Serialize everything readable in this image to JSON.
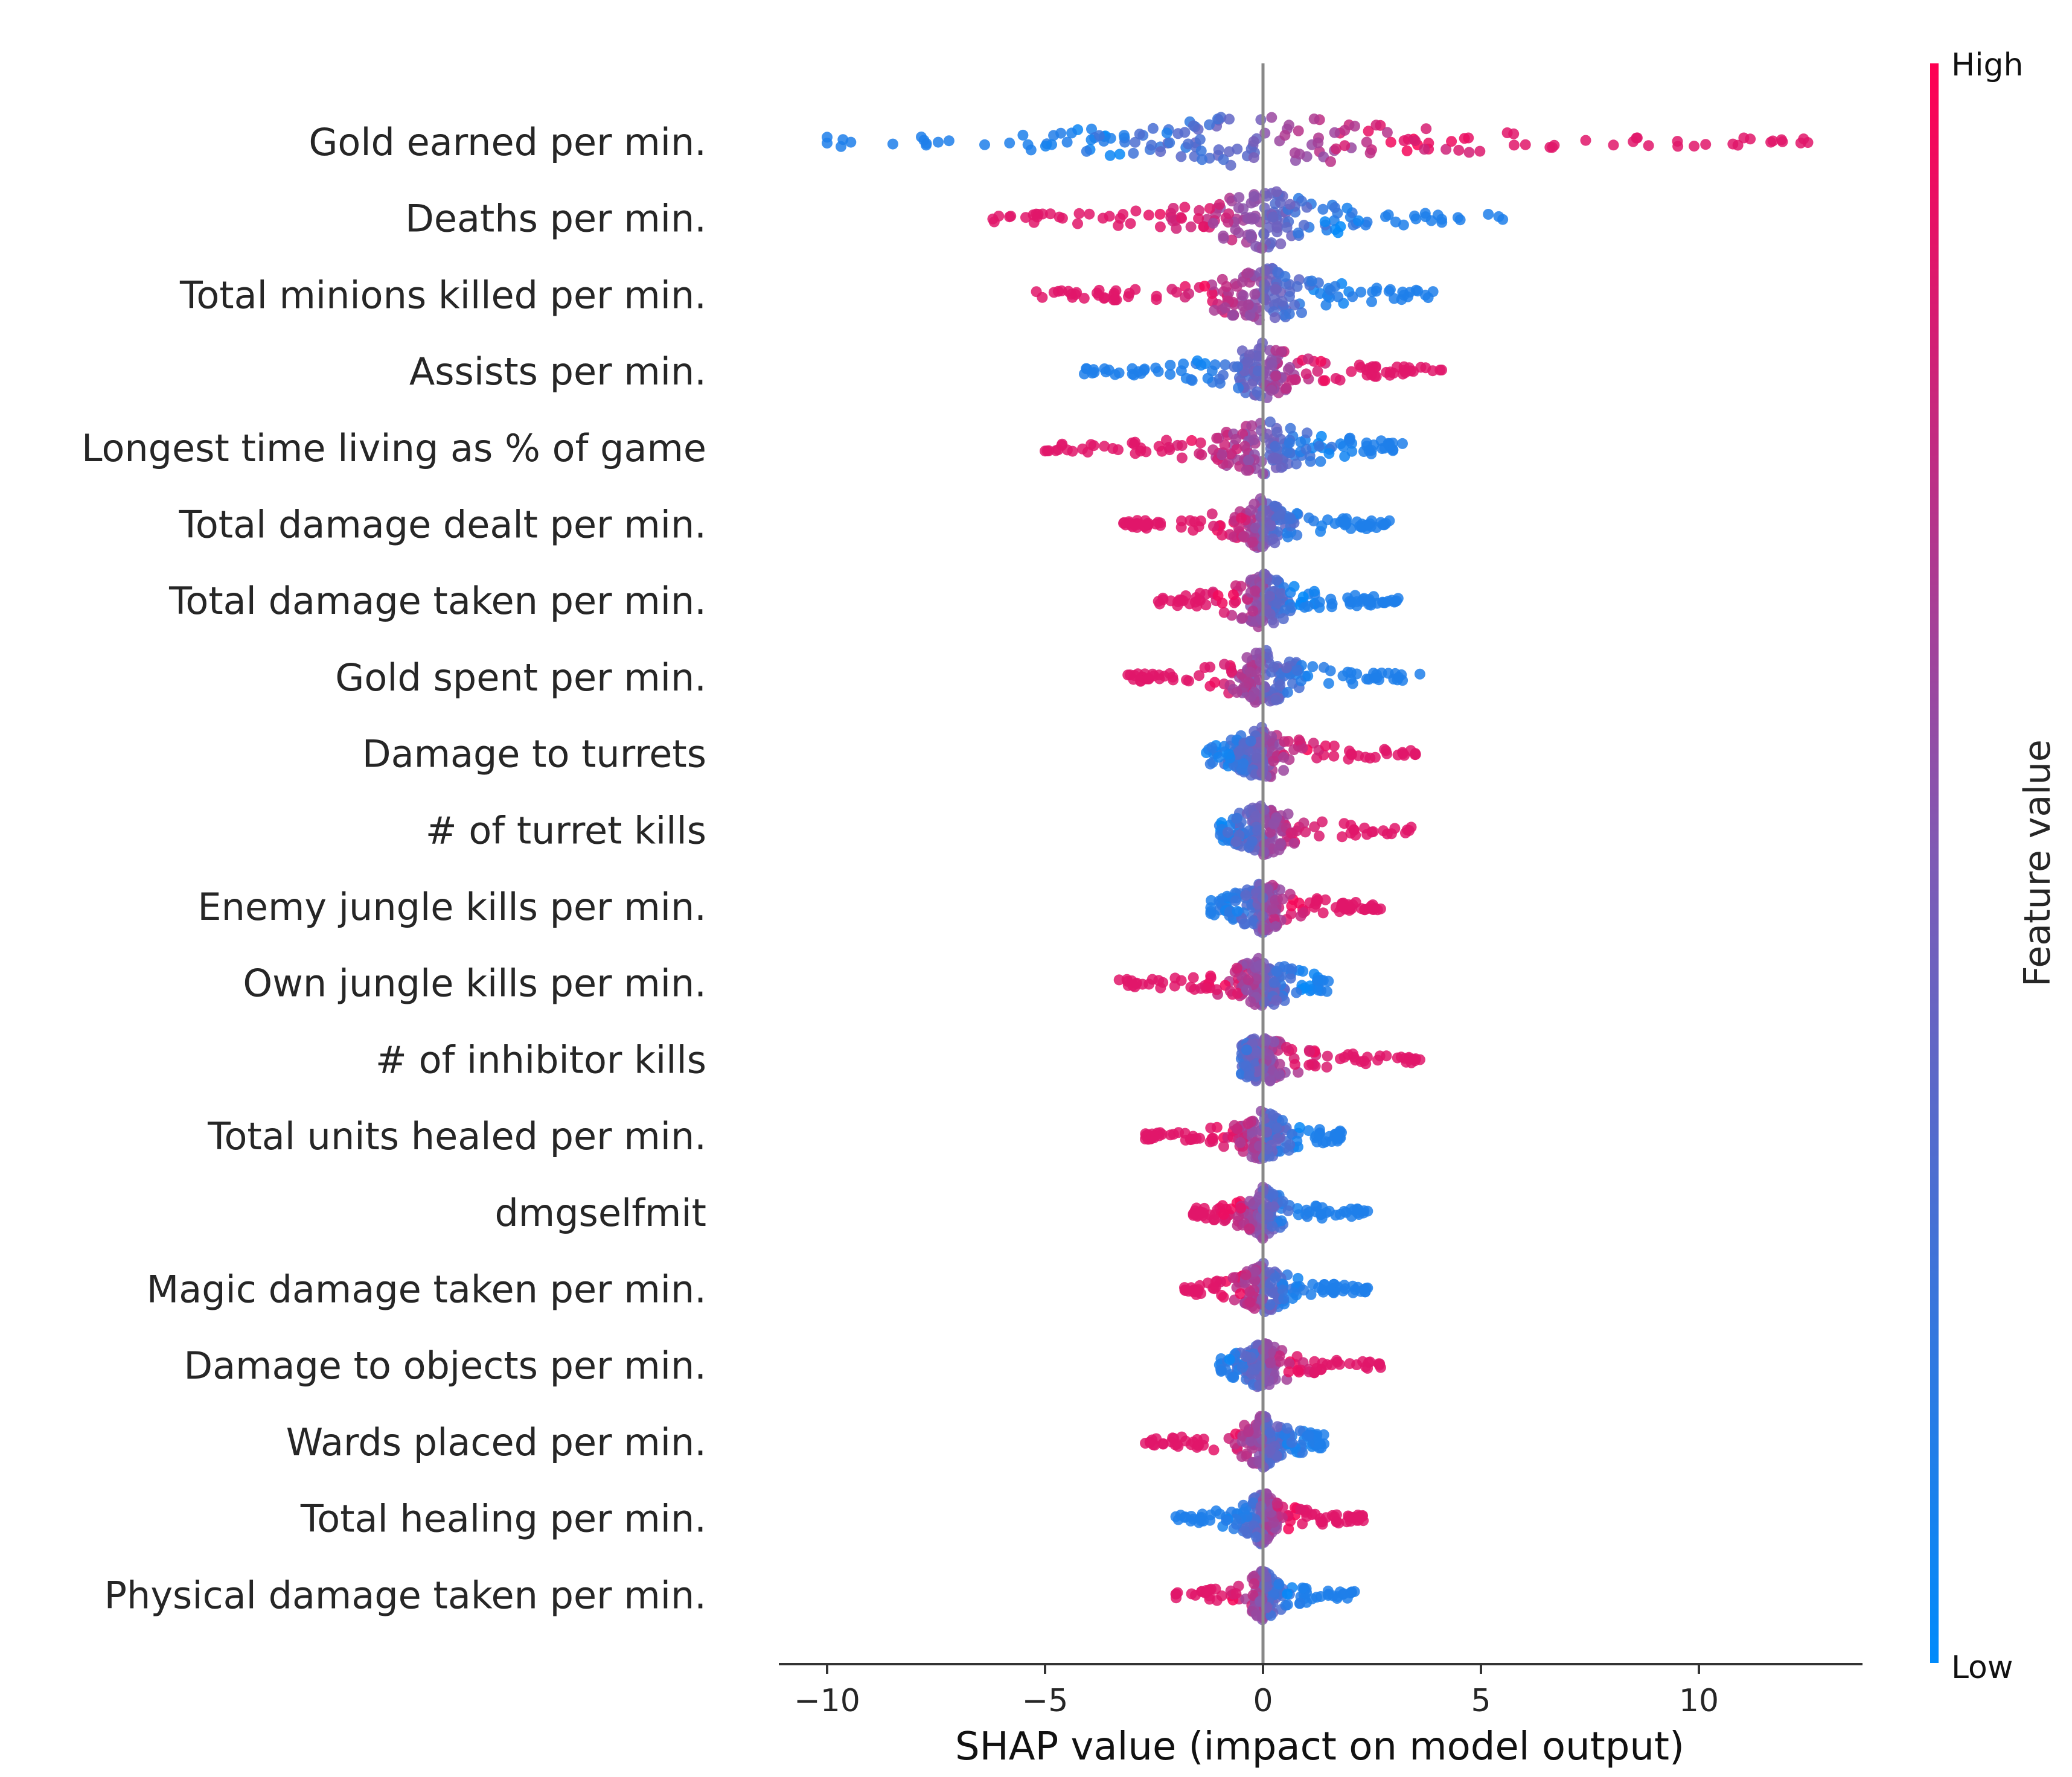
{
  "chart_data": {
    "type": "scatter",
    "subtype": "shap-beeswarm",
    "xlabel": "SHAP value (impact on model output)",
    "xlim": [
      -11.2,
      13.8
    ],
    "x_ticks": [
      -10,
      -5,
      0,
      5,
      10
    ],
    "x_tick_labels": [
      "−10",
      "−5",
      "0",
      "5",
      "10"
    ],
    "zero_line": 0,
    "colorbar": {
      "title": "Feature value",
      "high_label": "High",
      "low_label": "Low",
      "high_color": "#ff0052",
      "low_color": "#008bfb"
    },
    "features": [
      {
        "name": "Gold earned per min.",
        "min": -10,
        "max": 12.5,
        "low_side": "negative",
        "spread": 1.0
      },
      {
        "name": "Deaths per min.",
        "min": -6.2,
        "max": 5.5,
        "low_side": "positive",
        "spread": 0.7
      },
      {
        "name": "Total minions killed per min.",
        "min": -5.2,
        "max": 3.9,
        "low_side": "positive",
        "spread": 0.65
      },
      {
        "name": "Assists per min.",
        "min": -4.1,
        "max": 4.1,
        "low_side": "negative",
        "spread": 0.55
      },
      {
        "name": "Longest time living as % of game",
        "min": -5.0,
        "max": 3.2,
        "low_side": "positive",
        "spread": 0.55
      },
      {
        "name": "Total damage dealt per min.",
        "min": -3.2,
        "max": 2.9,
        "low_side": "positive",
        "spread": 0.5
      },
      {
        "name": "Total damage taken per min.",
        "min": -2.4,
        "max": 3.1,
        "low_side": "positive",
        "spread": 0.55
      },
      {
        "name": "Gold spent per min.",
        "min": -3.1,
        "max": 3.6,
        "low_side": "positive",
        "spread": 0.6
      },
      {
        "name": "Damage to turrets",
        "min": -1.3,
        "max": 3.5,
        "low_side": "negative",
        "spread": 0.45
      },
      {
        "name": "# of turret kills",
        "min": -1.0,
        "max": 3.4,
        "low_side": "negative",
        "spread": 0.45
      },
      {
        "name": "Enemy jungle kills per min.",
        "min": -1.2,
        "max": 2.7,
        "low_side": "negative",
        "spread": 0.45
      },
      {
        "name": "Own jungle kills per min.",
        "min": -3.3,
        "max": 1.5,
        "low_side": "positive",
        "spread": 0.45
      },
      {
        "name": "# of inhibitor kills",
        "min": -0.5,
        "max": 3.6,
        "low_side": "negative",
        "spread": 0.3
      },
      {
        "name": "Total units healed per min.",
        "min": -2.7,
        "max": 1.8,
        "low_side": "positive",
        "spread": 0.45
      },
      {
        "name": "dmgselfmit",
        "min": -1.6,
        "max": 2.4,
        "low_side": "positive",
        "spread": 0.4
      },
      {
        "name": "Magic damage taken per min.",
        "min": -1.8,
        "max": 2.4,
        "low_side": "positive",
        "spread": 0.45
      },
      {
        "name": "Damage to objects per min.",
        "min": -1.0,
        "max": 2.7,
        "low_side": "negative",
        "spread": 0.3
      },
      {
        "name": "Wards placed per min.",
        "min": -2.7,
        "max": 1.4,
        "low_side": "positive",
        "spread": 0.45
      },
      {
        "name": "Total healing per min.",
        "min": -2.0,
        "max": 2.3,
        "low_side": "negative",
        "spread": 0.45
      },
      {
        "name": "Physical damage taken per min.",
        "min": -2.0,
        "max": 2.1,
        "low_side": "positive",
        "spread": 0.4
      }
    ]
  }
}
